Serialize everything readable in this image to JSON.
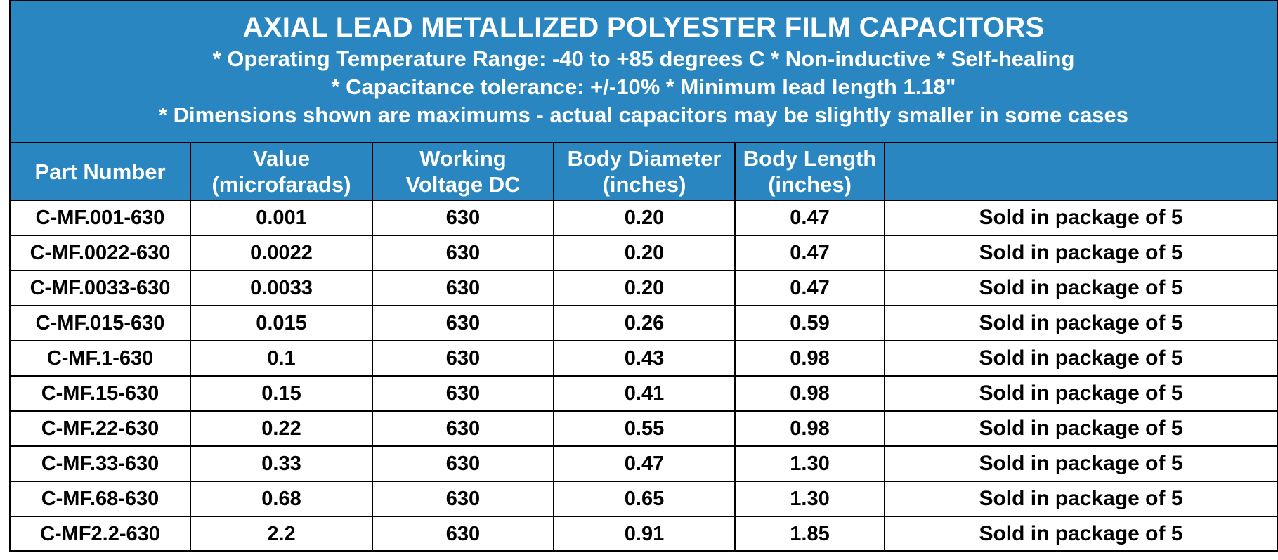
{
  "header": {
    "title": "AXIAL LEAD METALLIZED POLYESTER FILM CAPACITORS",
    "notes": [
      "* Operating Temperature Range: -40 to +85 degrees C  * Non-inductive  * Self-healing",
      "* Capacitance tolerance: +/-10%  * Minimum  lead length  1.18\"",
      "* Dimensions shown are maximums - actual capacitors may be slightly smaller in some cases"
    ]
  },
  "columns": [
    {
      "line1": "Part Number",
      "line2": ""
    },
    {
      "line1": "Value",
      "line2": "(microfarads)"
    },
    {
      "line1": "Working",
      "line2": "Voltage DC"
    },
    {
      "line1": "Body Diameter",
      "line2": "(inches)"
    },
    {
      "line1": "Body Length",
      "line2": "(inches)"
    },
    {
      "line1": "",
      "line2": ""
    }
  ],
  "rows": [
    [
      "C-MF.001-630",
      "0.001",
      "630",
      "0.20",
      "0.47",
      "Sold in package of 5"
    ],
    [
      "C-MF.0022-630",
      "0.0022",
      "630",
      "0.20",
      "0.47",
      "Sold in package of 5"
    ],
    [
      "C-MF.0033-630",
      "0.0033",
      "630",
      "0.20",
      "0.47",
      "Sold in package of 5"
    ],
    [
      "C-MF.015-630",
      "0.015",
      "630",
      "0.26",
      "0.59",
      "Sold in package of 5"
    ],
    [
      "C-MF.1-630",
      "0.1",
      "630",
      "0.43",
      "0.98",
      "Sold in package of 5"
    ],
    [
      "C-MF.15-630",
      "0.15",
      "630",
      "0.41",
      "0.98",
      "Sold in package of 5"
    ],
    [
      "C-MF.22-630",
      "0.22",
      "630",
      "0.55",
      "0.98",
      "Sold in package of 5"
    ],
    [
      "C-MF.33-630",
      "0.33",
      "630",
      "0.47",
      "1.30",
      "Sold in package of 5"
    ],
    [
      "C-MF.68-630",
      "0.68",
      "630",
      "0.65",
      "1.30",
      "Sold in package of 5"
    ],
    [
      "C-MF2.2-630",
      "2.2",
      "630",
      "0.91",
      "1.85",
      "Sold in package of 5"
    ]
  ]
}
